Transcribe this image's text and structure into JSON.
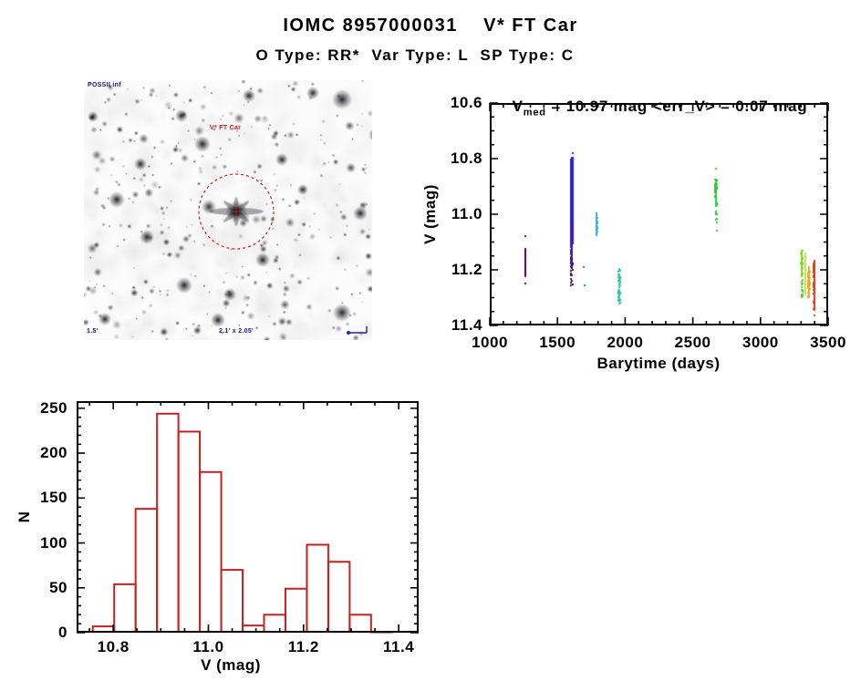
{
  "header": {
    "title": "IOMC 8957000031    V* FT Car",
    "subtitle": "O Type: RR*  Var Type: L  SP Type: C"
  },
  "finder": {
    "survey_label": "POSSII inf",
    "target_label": "V* FT Car",
    "bottom_label": "2.1' x 2.05'",
    "corner_label": "1.5'",
    "circle_color": "#cc2222",
    "annotation_color": "#1a1a6e"
  },
  "chart_data": [
    {
      "type": "scatter",
      "title_prefix": "V",
      "title_sub": "med",
      "title_rest": " = 10.97 mag <err_V> = 0.07 mag",
      "xlabel": "Barytime (days)",
      "ylabel": "V (mag)",
      "xlim": [
        1000,
        3500
      ],
      "ylim": [
        11.4,
        10.6
      ],
      "x_tick_values": [
        1000,
        1500,
        2000,
        2500,
        3000,
        3500
      ],
      "x_tick_labels": [
        "1000",
        "1500",
        "2000",
        "2500",
        "3000",
        "3500"
      ],
      "x_minor_step": 100,
      "y_tick_values": [
        10.6,
        10.8,
        11.0,
        11.2,
        11.4
      ],
      "y_tick_labels": [
        "10.6",
        "10.8",
        "11.0",
        "11.2",
        "11.4"
      ],
      "y_minor_step": 0.05,
      "legend": "none",
      "grid": false,
      "clusters": [
        {
          "x": 1263,
          "x_jitter": 3,
          "y_min": 11.125,
          "y_max": 11.225,
          "n": 90,
          "color": "#3c0845"
        },
        {
          "x": 1607,
          "x_jitter": 7,
          "y_min": 10.795,
          "y_max": 11.105,
          "n": 950,
          "color": "#2121dd"
        },
        {
          "x": 1604,
          "x_jitter": 6,
          "y_min": 11.04,
          "y_max": 11.195,
          "n": 130,
          "color": "#4713a9"
        },
        {
          "x": 1606,
          "x_jitter": 9,
          "y_min": 11.16,
          "y_max": 11.26,
          "n": 16,
          "color": "#3c0845"
        },
        {
          "x": 1790,
          "x_jitter": 3,
          "y_min": 10.995,
          "y_max": 11.075,
          "n": 80,
          "color": "#29b2db"
        },
        {
          "x": 1957,
          "x_jitter": 6,
          "y_min": 11.195,
          "y_max": 11.325,
          "n": 60,
          "color": "#25c79b"
        },
        {
          "x": 2671,
          "x_jitter": 4,
          "y_min": 10.875,
          "y_max": 10.965,
          "n": 120,
          "color": "#28c838"
        },
        {
          "x": 2673,
          "x_jitter": 5,
          "y_min": 10.96,
          "y_max": 11.035,
          "n": 15,
          "color": "#28c838"
        },
        {
          "x": 3305,
          "x_jitter": 4,
          "y_min": 11.13,
          "y_max": 11.225,
          "n": 100,
          "color": "#7cd42c"
        },
        {
          "x": 3307,
          "x_jitter": 5,
          "y_min": 11.23,
          "y_max": 11.3,
          "n": 14,
          "color": "#57c832"
        },
        {
          "x": 3332,
          "x_jitter": 3,
          "y_min": 11.14,
          "y_max": 11.295,
          "n": 80,
          "color": "#c3e14c"
        },
        {
          "x": 3358,
          "x_jitter": 4,
          "y_min": 11.19,
          "y_max": 11.3,
          "n": 170,
          "color": "#e9a51b"
        },
        {
          "x": 3398,
          "x_jitter": 3,
          "y_min": 11.165,
          "y_max": 11.345,
          "n": 280,
          "color": "#d8380f"
        }
      ],
      "outliers": [
        {
          "x": 1263,
          "y": 11.08,
          "color": "#3c0845"
        },
        {
          "x": 1264,
          "y": 11.25,
          "color": "#3c0845"
        },
        {
          "x": 1610,
          "y": 10.78,
          "color": "#2121dd"
        },
        {
          "x": 1695,
          "y": 11.19,
          "color": "#1d808c"
        },
        {
          "x": 1703,
          "y": 11.255,
          "color": "#1d808c"
        },
        {
          "x": 2670,
          "y": 10.835,
          "color": "#28c838"
        },
        {
          "x": 2676,
          "y": 11.06,
          "color": "#28c838"
        },
        {
          "x": 3398,
          "y": 11.365,
          "color": "#d8380f"
        }
      ]
    },
    {
      "type": "bar",
      "xlabel": "V (mag)",
      "ylabel": "N",
      "xlim": [
        10.723,
        11.442
      ],
      "ylim": [
        0,
        258
      ],
      "x_tick_values": [
        10.8,
        11.0,
        11.2,
        11.4
      ],
      "x_tick_labels": [
        "10.8",
        "11.0",
        "11.2",
        "11.4"
      ],
      "x_minor_step": 0.05,
      "y_tick_values": [
        0,
        50,
        100,
        150,
        200,
        250
      ],
      "y_tick_labels": [
        "0",
        "50",
        "100",
        "150",
        "200",
        "250"
      ],
      "y_minor_step": 10,
      "bin_start": 10.757,
      "bin_width": 0.045,
      "counts": [
        7,
        54,
        138,
        244,
        224,
        179,
        70,
        8,
        20,
        49,
        98,
        79,
        20,
        1
      ],
      "color": "#cc2020",
      "grid": false
    }
  ]
}
